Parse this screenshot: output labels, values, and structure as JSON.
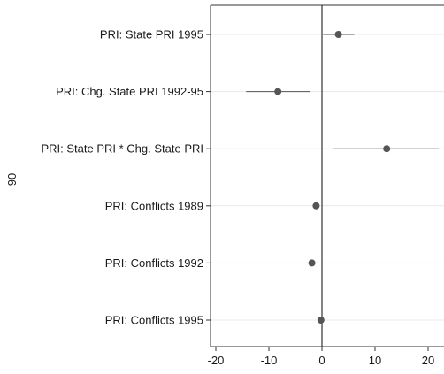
{
  "chart_data": {
    "type": "scatter",
    "orientation": "horizontal",
    "side_label": "90",
    "xlim": [
      -21,
      23
    ],
    "xticks": [
      -20,
      -10,
      0,
      10,
      20
    ],
    "reference_line_x": 0,
    "grid": "horizontal",
    "categories": [
      "PRI: State PRI 1995",
      "PRI: Chg. State PRI 1992-95",
      "PRI: State PRI * Chg. State PRI",
      "PRI: Conflicts 1989",
      "PRI: Conflicts 1992",
      "PRI: Conflicts 1995"
    ],
    "points": [
      {
        "estimate": 3.1,
        "ci_low": 0.2,
        "ci_high": 6.1
      },
      {
        "estimate": -8.3,
        "ci_low": -14.3,
        "ci_high": -2.3
      },
      {
        "estimate": 12.2,
        "ci_low": 2.2,
        "ci_high": 22.0
      },
      {
        "estimate": -1.1,
        "ci_low": -1.6,
        "ci_high": -0.6
      },
      {
        "estimate": -1.9,
        "ci_low": -2.3,
        "ci_high": -1.5
      },
      {
        "estimate": -0.2,
        "ci_low": -0.5,
        "ci_high": 0.1
      }
    ],
    "colors": {
      "point": "#555555",
      "ci": "#555555",
      "gridline": "#e8e8e8",
      "axis": "#333333"
    }
  }
}
